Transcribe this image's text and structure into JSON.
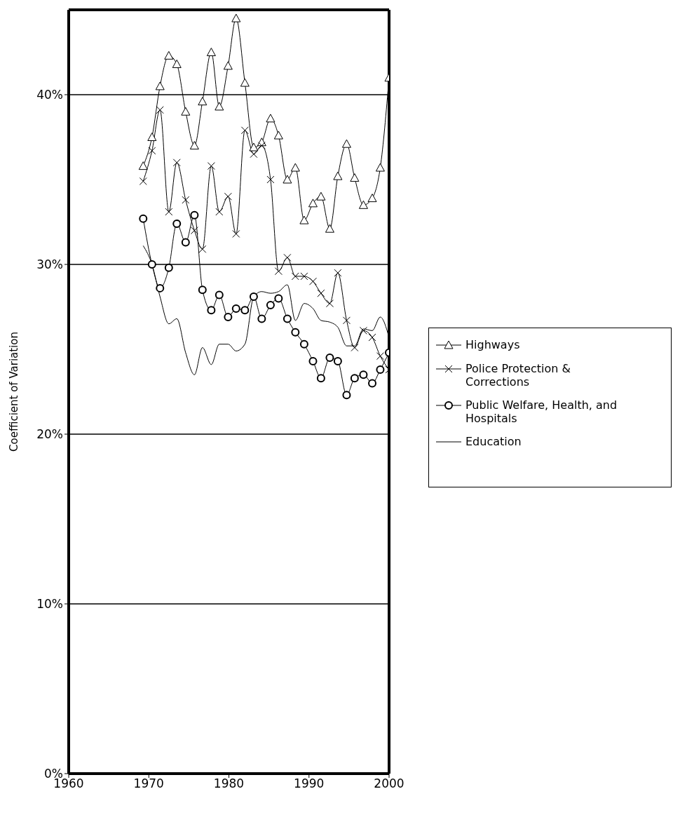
{
  "chart_data": {
    "type": "line",
    "ylabel": "Coefficient of Variation",
    "x": [
      1969.3,
      1970.4,
      1971.4,
      1972.5,
      1973.5,
      1974.6,
      1975.7,
      1976.7,
      1977.8,
      1978.8,
      1979.9,
      1980.9,
      1982.0,
      1983.1,
      1984.1,
      1985.2,
      1986.2,
      1987.3,
      1988.3,
      1989.4,
      1990.5,
      1991.5,
      1992.6,
      1993.6,
      1994.7,
      1995.7,
      1996.8,
      1997.9,
      1998.9,
      2000.0
    ],
    "series": [
      {
        "name": "Highways",
        "color": "#000000",
        "marker": "triangle",
        "values": [
          35.8,
          37.5,
          40.5,
          42.3,
          41.8,
          39.0,
          37.0,
          39.6,
          42.5,
          39.3,
          41.7,
          44.5,
          40.7,
          36.9,
          37.2,
          38.6,
          37.6,
          35.0,
          35.7,
          32.6,
          33.6,
          34.0,
          32.1,
          35.2,
          37.1,
          35.1,
          33.5,
          33.9,
          35.7,
          41.0
        ]
      },
      {
        "name": "Police Protection & Corrections",
        "color": "#000000",
        "marker": "cross",
        "values": [
          34.9,
          36.7,
          39.1,
          33.1,
          36.0,
          33.8,
          32.0,
          30.9,
          35.8,
          33.1,
          34.0,
          31.8,
          37.9,
          36.5,
          37.0,
          35.0,
          29.6,
          30.4,
          29.3,
          29.3,
          29.0,
          28.3,
          27.7,
          29.5,
          26.7,
          25.1,
          26.1,
          25.7,
          24.6,
          23.8
        ]
      },
      {
        "name": "Public Welfare, Health, and Hospitals",
        "color": "#000000",
        "marker": "circle",
        "values": [
          32.7,
          30.0,
          28.6,
          29.8,
          32.4,
          31.3,
          32.9,
          28.5,
          27.3,
          28.2,
          26.9,
          27.4,
          27.3,
          28.1,
          26.8,
          27.6,
          28.0,
          26.8,
          26.0,
          25.3,
          24.3,
          23.3,
          24.5,
          24.3,
          22.3,
          23.3,
          23.5,
          23.0,
          23.8,
          24.8
        ]
      },
      {
        "name": "Education",
        "color": "#000000",
        "marker": "none",
        "values": [
          31.1,
          30.0,
          28.1,
          26.5,
          26.8,
          24.8,
          23.5,
          25.1,
          24.1,
          25.3,
          25.3,
          24.9,
          25.3,
          28.1,
          28.4,
          28.3,
          28.4,
          28.8,
          26.7,
          27.7,
          27.4,
          26.7,
          26.6,
          26.3,
          25.2,
          25.2,
          26.2,
          26.1,
          26.9,
          25.7
        ]
      }
    ],
    "xlim": [
      1960,
      2000
    ],
    "xticks": [
      1960,
      1970,
      1980,
      1990,
      2000
    ],
    "ylim": [
      0,
      45
    ],
    "yticks": [
      {
        "value": 0,
        "label": "0%"
      },
      {
        "value": 10,
        "label": "10%"
      },
      {
        "value": 20,
        "label": "20%"
      },
      {
        "value": 30,
        "label": "30%"
      },
      {
        "value": 40,
        "label": "40%"
      }
    ],
    "grid": "y",
    "legend": "right"
  }
}
